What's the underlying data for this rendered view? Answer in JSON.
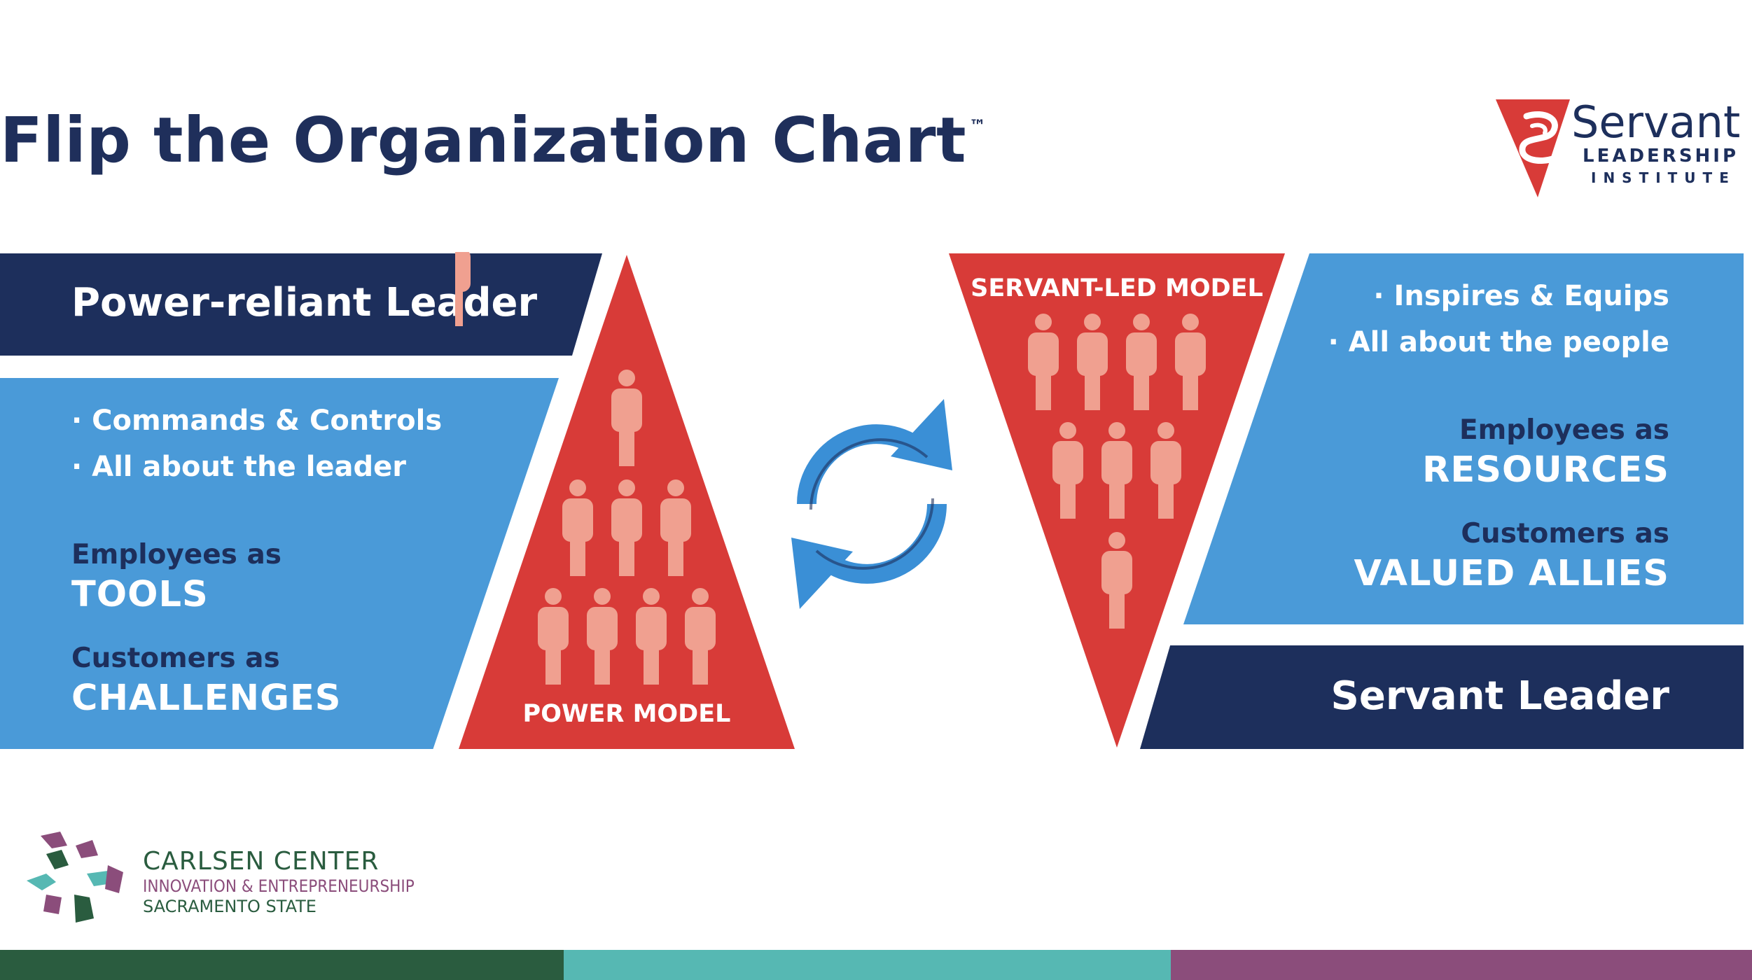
{
  "title": "Flip the Organization Chart",
  "title_mark": "™",
  "logo": {
    "name": "Servant",
    "line2": "LEADERSHIP",
    "line3": "INSTITUTE",
    "icon": "servant-leadership-logo-icon"
  },
  "left": {
    "header": "Power-reliant Leader",
    "bullets": [
      "· Commands & Controls",
      "· All about the leader"
    ],
    "employees_label": "Employees as",
    "employees_value": "TOOLS",
    "customers_label": "Customers as",
    "customers_value": "CHALLENGES"
  },
  "power_model": {
    "label": "POWER MODEL",
    "icon": "person-icon"
  },
  "cycle_icon": "refresh-cycle-icon",
  "servant_model": {
    "label": "SERVANT-LED MODEL",
    "icon": "person-icon"
  },
  "right": {
    "bullets": [
      "· Inspires & Equips",
      "· All about the people"
    ],
    "employees_label": "Employees as",
    "employees_value": "RESOURCES",
    "customers_label": "Customers as",
    "customers_value": "VALUED ALLIES",
    "header": "Servant Leader"
  },
  "carlsen": {
    "name": "CARLSEN CENTER",
    "subtitle": "INNOVATION & ENTREPRENEURSHIP",
    "school": "SACRAMENTO STATE",
    "icon": "carlsen-pinwheel-icon"
  },
  "colors": {
    "navy": "#1d2f5c",
    "blue": "#4a9ad8",
    "red": "#d83b38",
    "person": "#f0a090",
    "bar_green": "#2a5c3f",
    "bar_teal": "#56b8b3",
    "bar_purple": "#8b4d7b"
  }
}
